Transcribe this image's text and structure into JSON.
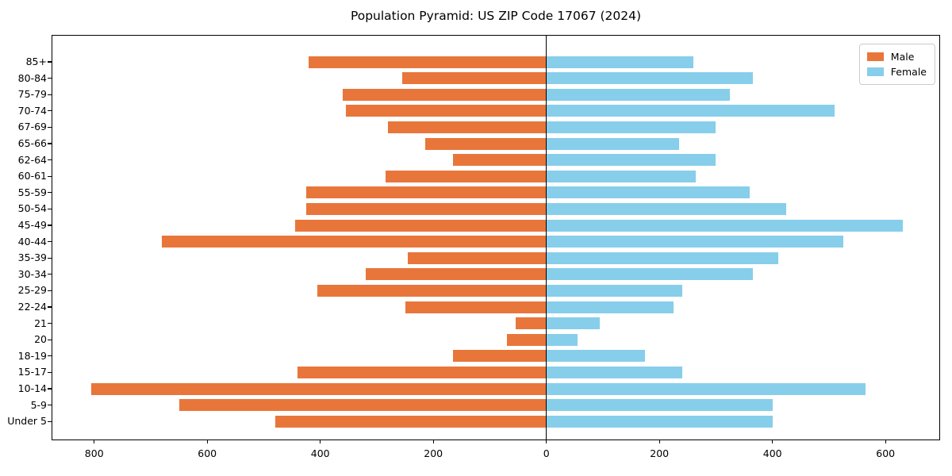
{
  "chart_data": {
    "type": "bar",
    "orientation": "horizontal",
    "title": "Population Pyramid: US ZIP Code 17067 (2024)",
    "categories": [
      "85+",
      "80-84",
      "75-79",
      "70-74",
      "67-69",
      "65-66",
      "62-64",
      "60-61",
      "55-59",
      "50-54",
      "45-49",
      "40-44",
      "35-39",
      "30-34",
      "25-29",
      "22-24",
      "21",
      "20",
      "18-19",
      "15-17",
      "10-14",
      "5-9",
      "Under 5"
    ],
    "series": [
      {
        "name": "Male",
        "color": "#e8763b",
        "direction": "left",
        "values": [
          420,
          255,
          360,
          355,
          280,
          215,
          165,
          285,
          425,
          425,
          445,
          680,
          245,
          320,
          405,
          250,
          55,
          70,
          165,
          440,
          805,
          650,
          480
        ]
      },
      {
        "name": "Female",
        "color": "#87ceeb",
        "direction": "right",
        "values": [
          260,
          365,
          325,
          510,
          300,
          235,
          300,
          265,
          360,
          425,
          630,
          525,
          410,
          365,
          240,
          225,
          95,
          55,
          175,
          240,
          565,
          400,
          400
        ]
      }
    ],
    "x_ticks": [
      {
        "value": -800,
        "label": "800"
      },
      {
        "value": -600,
        "label": "600"
      },
      {
        "value": -400,
        "label": "400"
      },
      {
        "value": -200,
        "label": "200"
      },
      {
        "value": 0,
        "label": "0"
      },
      {
        "value": 200,
        "label": "200"
      },
      {
        "value": 400,
        "label": "400"
      },
      {
        "value": 600,
        "label": "600"
      }
    ],
    "xlim": [
      -874,
      698
    ],
    "grid": false,
    "zero_line": true,
    "legend_position": "upper right"
  }
}
